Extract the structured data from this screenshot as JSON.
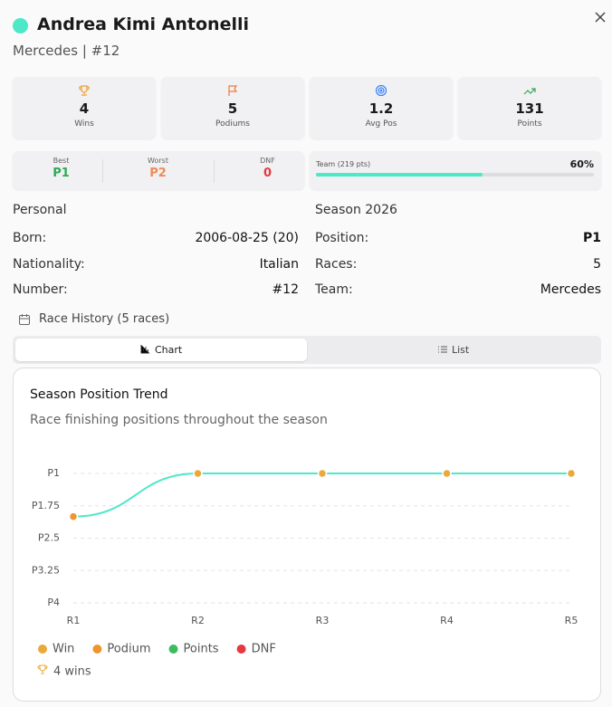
{
  "header": {
    "name": "Andrea Kimi Antonelli",
    "subtitle": "Mercedes | #12"
  },
  "stats": [
    {
      "value": 4,
      "label": "Wins"
    },
    {
      "value": 5,
      "label": "Podiums"
    },
    {
      "value": 1.2,
      "label": "Avg Pos"
    },
    {
      "value": 131,
      "label": "Points"
    }
  ],
  "results": [
    {
      "label": "Best",
      "value": "P1"
    },
    {
      "label": "Worst",
      "value": "P2"
    },
    {
      "label": "DNF",
      "value": 0
    }
  ],
  "team": {
    "label": "Team (219 pts)",
    "share": 60,
    "share_label": "60%"
  },
  "personal": {
    "title": "Personal",
    "rows": [
      [
        "Born:",
        "2006-08-25 (20)"
      ],
      [
        "Nationality:",
        "Italian"
      ],
      [
        "Number:",
        "#12"
      ]
    ]
  },
  "season": {
    "title": "Season 2026",
    "rows": [
      [
        "Position:",
        "P1"
      ],
      [
        "Races:",
        5
      ],
      [
        "Team:",
        "Mercedes"
      ]
    ]
  },
  "race_history": "Race History (5 races)",
  "tabs": [
    "Chart",
    "List"
  ],
  "chart_data": {
    "type": "line",
    "title": "Season Position Trend",
    "subtitle": "Race finishing positions throughout the season",
    "categories": [
      "R1",
      "R2",
      "R3",
      "R4",
      "R5"
    ],
    "series": [
      {
        "color": "#4de8c8",
        "values": [
          2,
          1,
          1,
          1,
          1
        ],
        "point_colors": [
          "#f0952e",
          "#eaa93a",
          "#eaa93a",
          "#eaa93a",
          "#eaa93a"
        ]
      }
    ],
    "ylim": [
      4,
      1
    ],
    "yticks": [
      {
        "value": 1,
        "label": "P1"
      },
      {
        "value": 1.75,
        "label": "P1.75"
      },
      {
        "value": 2.5,
        "label": "P2.5"
      },
      {
        "value": 3.25,
        "label": "P3.25"
      },
      {
        "value": 4,
        "label": "P4"
      }
    ],
    "grid": true,
    "legend": [
      {
        "name": "Win",
        "color": "#eaa93a"
      },
      {
        "name": "Podium",
        "color": "#f0952e"
      },
      {
        "name": "Points",
        "color": "#3dbb5f"
      },
      {
        "name": "DNF",
        "color": "#e5393f"
      }
    ],
    "annotation": "4 wins"
  }
}
